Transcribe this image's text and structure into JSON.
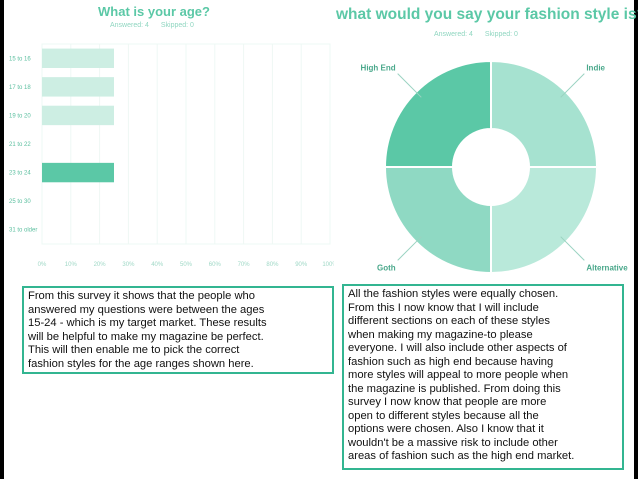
{
  "chart_data": [
    {
      "type": "bar",
      "orientation": "horizontal",
      "title": "What is your age?",
      "answered": "Answered: 4",
      "skipped": "Skipped: 0",
      "categories": [
        "15 to 16",
        "17 to 18",
        "19 to 20",
        "21 to 22",
        "23 to 24",
        "25 to 30",
        "31 to older"
      ],
      "values": [
        25,
        25,
        25,
        0,
        25,
        0,
        0
      ],
      "highlight_index": 4,
      "xlim": [
        0,
        100
      ],
      "x_ticks": [
        "0%",
        "10%",
        "20%",
        "30%",
        "40%",
        "50%",
        "60%",
        "70%",
        "80%",
        "90%",
        "100%"
      ],
      "grid": true,
      "colors": {
        "bar": "#cdeee3",
        "highlight": "#5bc8a6",
        "grid": "#eef8f4"
      }
    },
    {
      "type": "pie",
      "donut": true,
      "title": "what would you say your fashion style is?",
      "answered": "Answered: 4",
      "skipped": "Skipped: 0",
      "slices": [
        {
          "label": "Indie",
          "value": 25,
          "color": "#a6e2d0"
        },
        {
          "label": "Alternative",
          "value": 25,
          "color": "#b9e9da"
        },
        {
          "label": "Goth",
          "value": 25,
          "color": "#8fd9c3"
        },
        {
          "label": "High End",
          "value": 25,
          "color": "#5bc8a6"
        }
      ]
    }
  ],
  "text_boxes": {
    "left": [
      "From this survey it shows that the people who",
      "answered my questions were between the ages",
      "15-24 - which is my target market. These results",
      "will be helpful to make my magazine be perfect.",
      "This will then enable me to pick the correct",
      "fashion styles for the age ranges shown here."
    ],
    "right": [
      "All the fashion styles were equally chosen.",
      "From this I now know that I will include",
      "different sections on each of these styles",
      "when making my magazine-to please",
      "everyone. I will also include other aspects of",
      "fashion such as high end because having",
      "more styles will appeal to more people when",
      "the magazine is published. From doing this",
      "survey I now know that people are more",
      "open to different styles because all the",
      "options were chosen. Also I know that it",
      "wouldn't be a massive risk to include other",
      "areas of fashion such as the high end market."
    ]
  }
}
